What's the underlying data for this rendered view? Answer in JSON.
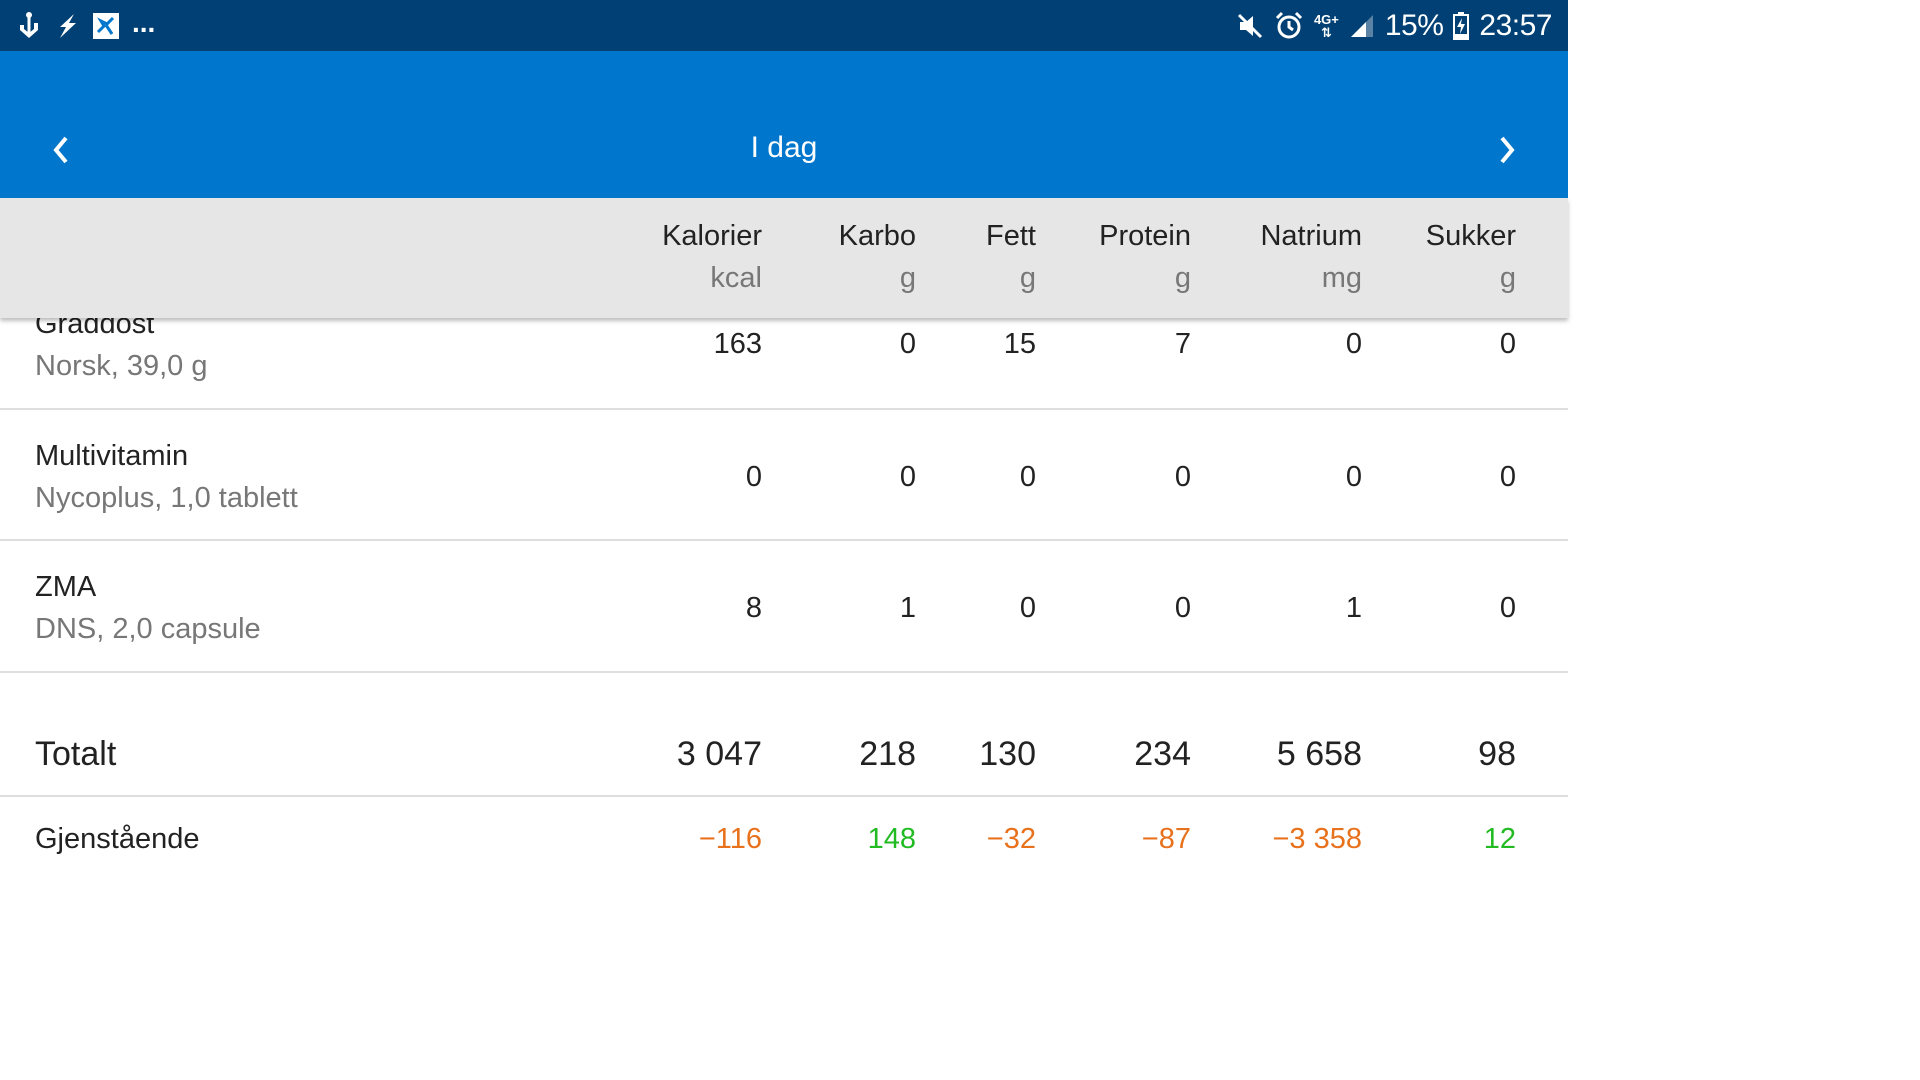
{
  "status_bar": {
    "left_icons": [
      "usb-debug-icon",
      "flash-icon",
      "app-notification-icon"
    ],
    "more": "...",
    "right_icons": [
      "mute-icon",
      "alarm-icon",
      "4g-icon",
      "signal-icon"
    ],
    "network": "4G+",
    "battery": "15%",
    "time": "23:57"
  },
  "app_bar": {
    "title": "I dag",
    "prev_icon": "chevron-left-icon",
    "next_icon": "chevron-right-icon",
    "color": "#0077cc"
  },
  "columns": [
    {
      "label": "Kalorier",
      "unit": "kcal"
    },
    {
      "label": "Karbo",
      "unit": "g"
    },
    {
      "label": "Fett",
      "unit": "g"
    },
    {
      "label": "Protein",
      "unit": "g"
    },
    {
      "label": "Natrium",
      "unit": "mg"
    },
    {
      "label": "Sukker",
      "unit": "g"
    }
  ],
  "foods": [
    {
      "name": "Graddost",
      "detail": "Norsk, 39,0 g",
      "values": [
        "163",
        "0",
        "15",
        "7",
        "0",
        "0"
      ]
    },
    {
      "name": "Multivitamin",
      "detail": "Nycoplus, 1,0 tablett",
      "values": [
        "0",
        "0",
        "0",
        "0",
        "0",
        "0"
      ]
    },
    {
      "name": "ZMA",
      "detail": "DNS, 2,0 capsule",
      "values": [
        "8",
        "1",
        "0",
        "0",
        "1",
        "0"
      ]
    }
  ],
  "totals": {
    "label": "Totalt",
    "values": [
      "3 047",
      "218",
      "130",
      "234",
      "5 658",
      "98"
    ]
  },
  "remaining": {
    "label": "Gjenstående",
    "values": [
      "−116",
      "148",
      "−32",
      "−87",
      "−3 358",
      "12"
    ],
    "colors": [
      "#e8711c",
      "#22bb22",
      "#e8711c",
      "#e8711c",
      "#e8711c",
      "#22bb22"
    ]
  },
  "colors": {
    "status_bar": "#004074",
    "app_bar": "#0077cc",
    "over": "#e8711c",
    "under": "#22bb22"
  }
}
